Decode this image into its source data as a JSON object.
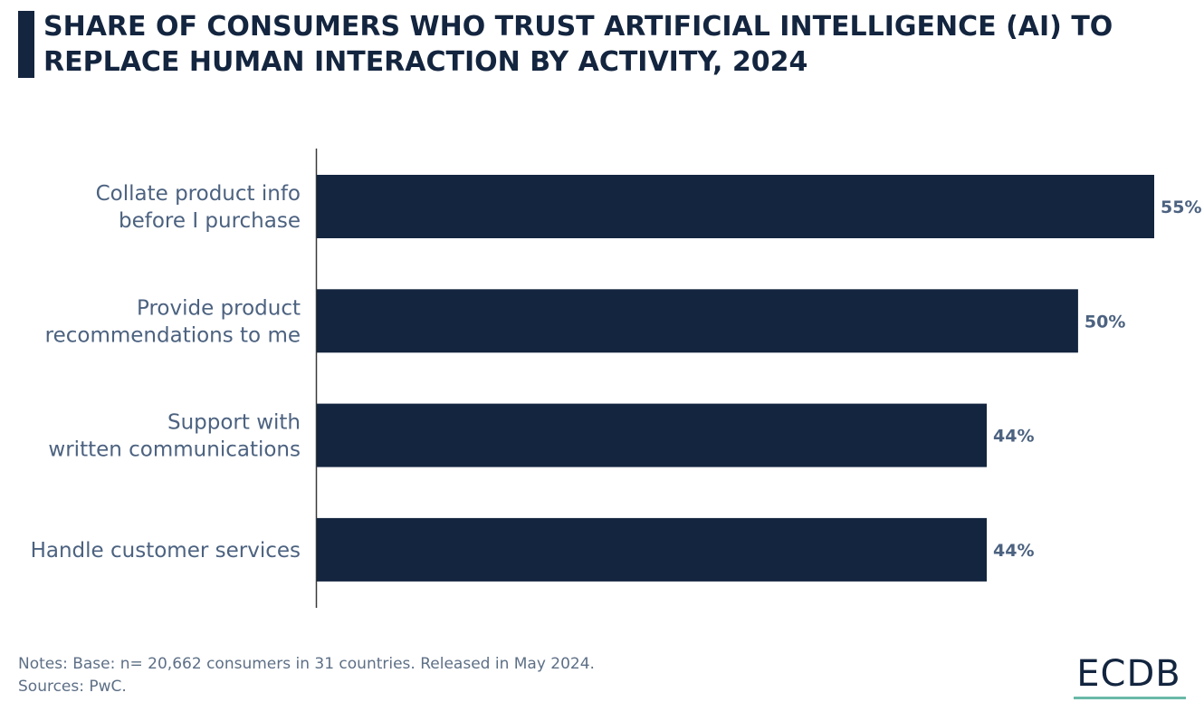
{
  "header": {
    "title": "SHARE OF CONSUMERS WHO TRUST ARTIFICIAL INTELLIGENCE (AI) TO REPLACE HUMAN INTERACTION BY ACTIVITY, 2024"
  },
  "chart_data": {
    "type": "bar",
    "orientation": "horizontal",
    "title": "Share of consumers who trust artificial intelligence (AI) to replace human interaction by activity, 2024",
    "categories": [
      [
        "Collate product info",
        "before I purchase"
      ],
      [
        "Provide product",
        "recommendations to me"
      ],
      [
        "Support with",
        "written communications"
      ],
      [
        "Handle customer services"
      ]
    ],
    "values": [
      55,
      50,
      44,
      44
    ],
    "value_labels": [
      "55%",
      "50%",
      "44%",
      "44%"
    ],
    "unit": "%",
    "xlim": [
      0,
      55
    ],
    "grid": false,
    "bar_color": "#13253f"
  },
  "footer": {
    "notes": "Notes: Base: n= 20,662 consumers in 31 countries. Released in May 2024.",
    "sources": "Sources: PwC.",
    "logo_text": "ECDB",
    "logo_accent_color": "#6ab9a8"
  }
}
